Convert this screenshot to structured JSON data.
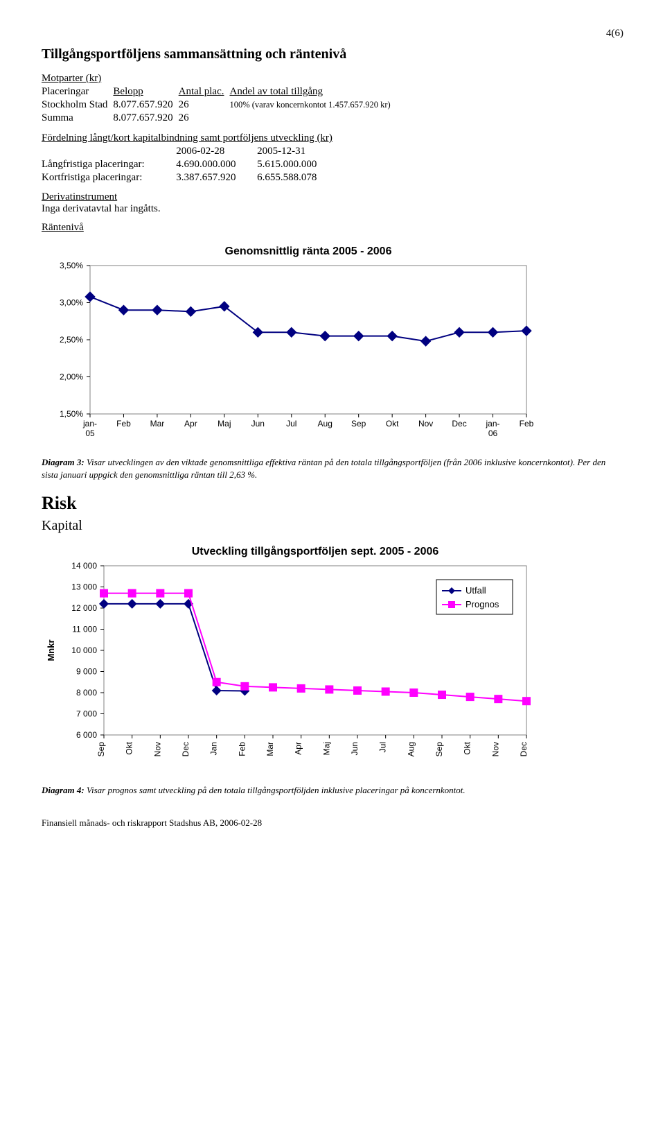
{
  "page_number": "4(6)",
  "section_title": "Tillgångsportföljens sammansättning och räntenivå",
  "motparter": {
    "heading": "Motparter (kr)",
    "headers": {
      "c1": "",
      "c2": "Belopp",
      "c3": "Antal plac.",
      "c4": "Andel av total tillgång"
    },
    "rows": [
      {
        "label": "Placeringar",
        "belopp": "",
        "antal": "",
        "andel": ""
      },
      {
        "label": "Stockholm Stad",
        "belopp": "8.077.657.920",
        "antal": "26",
        "andel": "100% (varav koncernkontot 1.457.657.920 kr)"
      },
      {
        "label": "Summa",
        "belopp": "8.077.657.920",
        "antal": "26",
        "andel": ""
      }
    ]
  },
  "fordelning": {
    "heading": "Fördelning långt/kort kapitalbindning samt portföljens utveckling (kr)",
    "col_dates": {
      "a": "2006-02-28",
      "b": "2005-12-31"
    },
    "rows": [
      {
        "label": "Långfristiga placeringar:",
        "a": "4.690.000.000",
        "b": "5.615.000.000"
      },
      {
        "label": "Kortfristiga placeringar:",
        "a": "3.387.657.920",
        "b": "6.655.588.078"
      }
    ]
  },
  "derivat": {
    "heading": "Derivatinstrument",
    "text": "Inga derivatavtal har ingåtts."
  },
  "rantenivå_heading": "Räntenivå",
  "chart1": {
    "type": "line",
    "title": "Genomsnittlig ränta 2005 - 2006",
    "title_fontsize": 16,
    "x_labels": [
      "jan-05",
      "Feb",
      "Mar",
      "Apr",
      "Maj",
      "Jun",
      "Jul",
      "Aug",
      "Sep",
      "Okt",
      "Nov",
      "Dec",
      "jan-06",
      "Feb"
    ],
    "y_ticks": [
      1.5,
      2.0,
      2.5,
      3.0,
      3.5
    ],
    "y_tick_labels": [
      "1,50%",
      "2,00%",
      "2,50%",
      "3,00%",
      "3,50%"
    ],
    "ylim": [
      1.5,
      3.5
    ],
    "values": [
      3.08,
      2.9,
      2.9,
      2.88,
      2.95,
      2.6,
      2.6,
      2.55,
      2.55,
      2.55,
      2.48,
      2.6,
      2.6,
      2.62
    ],
    "line_color": "#000080",
    "marker_color": "#000080",
    "marker_size": 7,
    "line_width": 2,
    "background_color": "#ffffff",
    "plot_border_color": "#808080",
    "axis_font_size": 12
  },
  "caption1": {
    "bold": "Diagram 3:",
    "text": " Visar utvecklingen av den viktade genomsnittliga effektiva räntan på den totala tillgångsportföljen (från 2006 inklusive koncernkontot). Per den sista januari uppgick den genomsnittliga räntan till 2,63 %."
  },
  "risk_heading": "Risk",
  "kapital_heading": "Kapital",
  "chart2": {
    "type": "line",
    "title": "Utveckling tillgångsportföljen sept. 2005 - 2006",
    "title_fontsize": 16,
    "y_axis_label": "Mnkr",
    "x_labels": [
      "Sep",
      "Okt",
      "Nov",
      "Dec",
      "Jan",
      "Feb",
      "Mar",
      "Apr",
      "Maj",
      "Jun",
      "Jul",
      "Aug",
      "Sep",
      "Okt",
      "Nov",
      "Dec"
    ],
    "y_ticks": [
      6000,
      7000,
      8000,
      9000,
      10000,
      11000,
      12000,
      13000,
      14000
    ],
    "y_tick_labels": [
      "6 000",
      "7 000",
      "8 000",
      "9 000",
      "10 000",
      "11 000",
      "12 000",
      "13 000",
      "14 000"
    ],
    "ylim": [
      6000,
      14000
    ],
    "series": [
      {
        "name": "Utfall",
        "values": [
          12200,
          12200,
          12200,
          12200,
          8100,
          8080,
          null,
          null,
          null,
          null,
          null,
          null,
          null,
          null,
          null,
          null
        ],
        "line_color": "#000080",
        "marker_color": "#000080",
        "marker": "diamond",
        "marker_size": 7,
        "line_width": 2
      },
      {
        "name": "Prognos",
        "values": [
          12700,
          12700,
          12700,
          12700,
          8500,
          8300,
          8250,
          8200,
          8150,
          8100,
          8050,
          8000,
          7900,
          7800,
          7700,
          7600
        ],
        "line_color": "#ff00ff",
        "marker_color": "#ff00ff",
        "marker": "square",
        "marker_size": 6,
        "line_width": 2
      }
    ],
    "legend": {
      "items": [
        "Utfall",
        "Prognos"
      ],
      "colors": [
        "#000080",
        "#ff00ff"
      ],
      "border_color": "#000000"
    },
    "background_color": "#ffffff",
    "plot_border_color": "#808080",
    "axis_font_size": 12
  },
  "caption2": {
    "bold": "Diagram 4:",
    "text": " Visar prognos samt utveckling på den totala tillgångsportföljden inklusive placeringar på koncernkontot."
  },
  "footer_text": "Finansiell månads- och riskrapport Stadshus AB, 2006-02-28"
}
